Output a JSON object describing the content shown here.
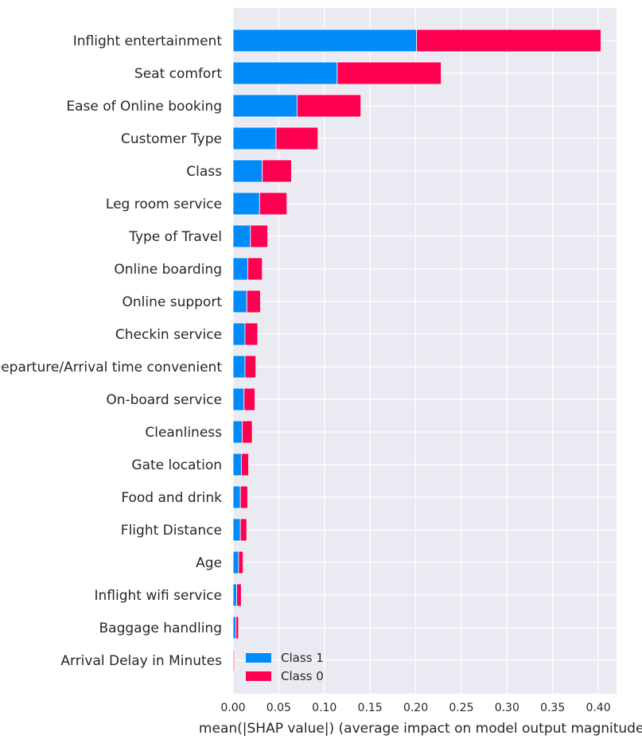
{
  "chart_data": {
    "type": "bar",
    "orientation": "horizontal",
    "stacked": true,
    "categories": [
      "Inflight entertainment",
      "Seat comfort",
      "Ease of Online booking",
      "Customer Type",
      "Class",
      "Leg room service",
      "Type of Travel",
      "Online boarding",
      "Online support",
      "Checkin service",
      "Departure/Arrival time convenient",
      "On-board service",
      "Cleanliness",
      "Gate location",
      "Food and drink",
      "Flight Distance",
      "Age",
      "Inflight wifi service",
      "Baggage handling",
      "Arrival Delay in Minutes"
    ],
    "series": [
      {
        "name": "Class 1",
        "color": "#008bfb",
        "values": [
          0.201,
          0.114,
          0.07,
          0.047,
          0.032,
          0.029,
          0.019,
          0.016,
          0.015,
          0.013,
          0.013,
          0.012,
          0.01,
          0.009,
          0.008,
          0.008,
          0.006,
          0.004,
          0.003,
          0.001
        ]
      },
      {
        "name": "Class 0",
        "color": "#ff0051",
        "values": [
          0.202,
          0.114,
          0.07,
          0.046,
          0.032,
          0.03,
          0.019,
          0.016,
          0.015,
          0.014,
          0.012,
          0.012,
          0.011,
          0.008,
          0.008,
          0.007,
          0.005,
          0.005,
          0.003,
          0.001
        ]
      }
    ],
    "xlim": [
      0,
      0.42
    ],
    "xticks": [
      "0.00",
      "0.05",
      "0.10",
      "0.15",
      "0.20",
      "0.25",
      "0.30",
      "0.35",
      "0.40"
    ],
    "xtick_values": [
      0,
      0.05,
      0.1,
      0.15,
      0.2,
      0.25,
      0.3,
      0.35,
      0.4
    ],
    "xlabel": "mean(|SHAP value|) (average impact on model output magnitude)",
    "ylabel": "",
    "title": "",
    "grid": true,
    "legend_position": "bottom-center",
    "background": "#eaeaf2"
  }
}
